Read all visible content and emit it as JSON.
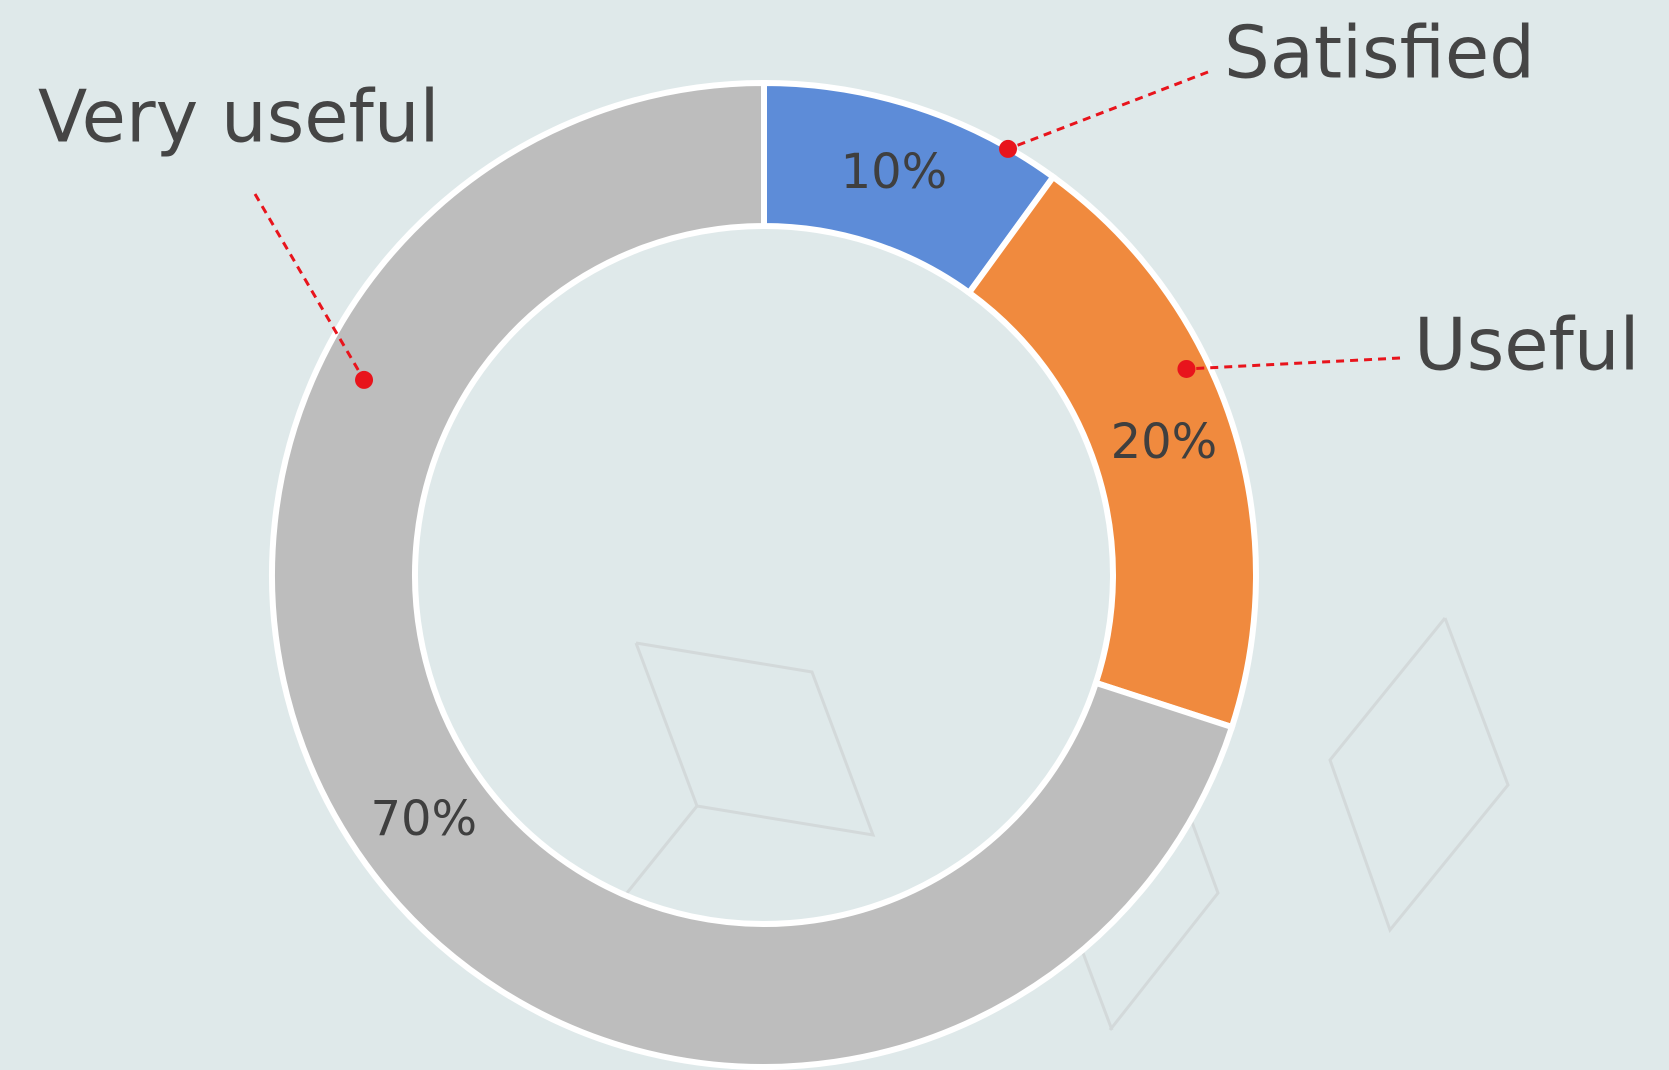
{
  "chart_data": {
    "type": "pie",
    "donut": true,
    "categories": [
      "Satisfied",
      "Useful",
      "Very useful"
    ],
    "values": [
      10,
      20,
      70
    ],
    "value_labels": [
      "10%",
      "20%",
      "70%"
    ],
    "colors": [
      "#5d8cd8",
      "#f08a3e",
      "#bdbdbd"
    ]
  }
}
